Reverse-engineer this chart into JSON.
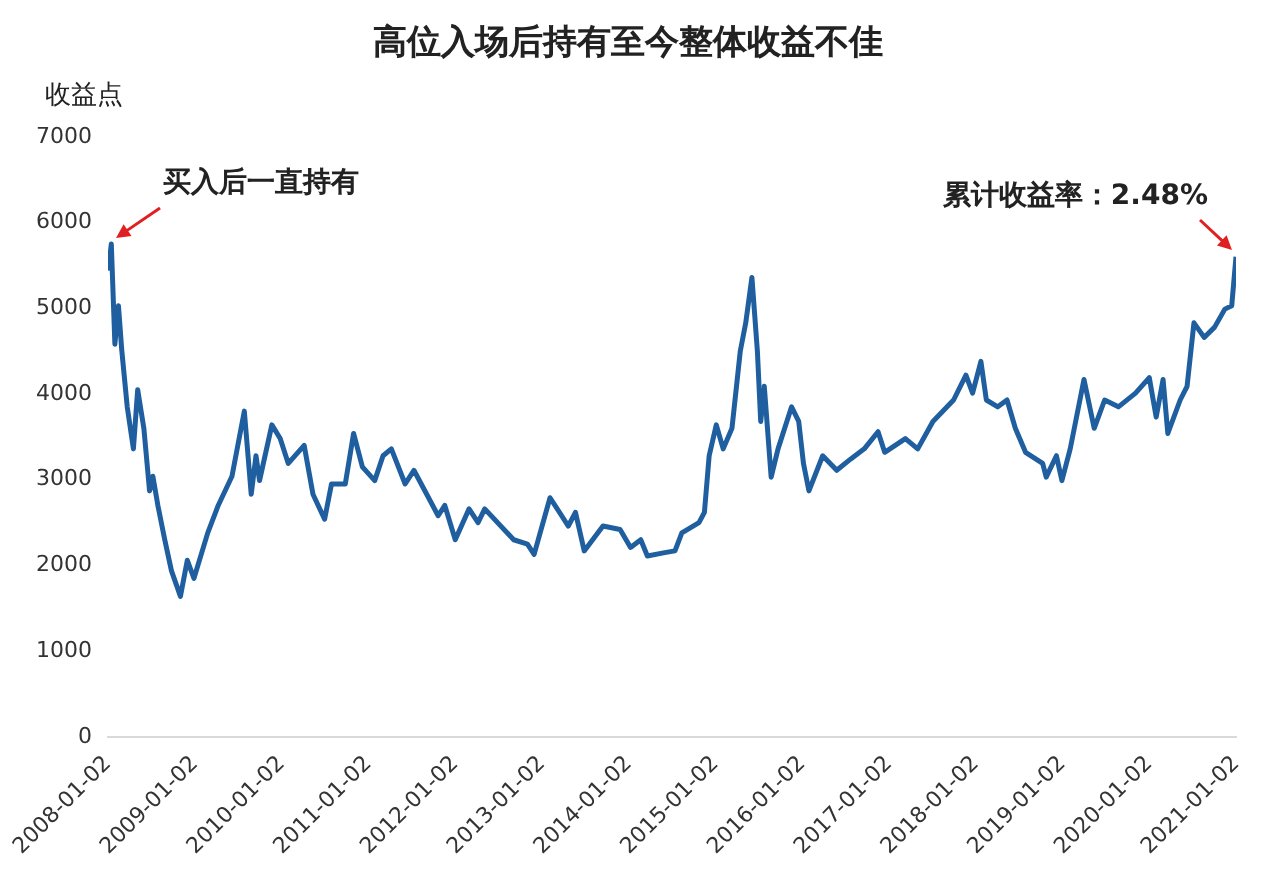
{
  "chart_data": {
    "type": "line",
    "title": "高位入场后持有至今整体收益不佳",
    "ylabel": "收益点",
    "x": [
      "2008-01-03",
      "2008-01-16",
      "2008-01-31",
      "2008-02-15",
      "2008-02-29",
      "2008-03-23",
      "2008-04-18",
      "2008-05-06",
      "2008-06-01",
      "2008-06-25",
      "2008-07-09",
      "2008-07-30",
      "2008-08-28",
      "2008-09-25",
      "2008-11-02",
      "2008-12-01",
      "2008-12-29",
      "2009-02-25",
      "2009-04-10",
      "2009-06-07",
      "2009-07-29",
      "2009-08-27",
      "2009-09-16",
      "2009-10-01",
      "2009-11-22",
      "2009-12-27",
      "2010-01-30",
      "2010-04-07",
      "2010-05-14",
      "2010-07-02",
      "2010-07-31",
      "2010-09-27",
      "2010-11-01",
      "2010-12-08",
      "2011-01-29",
      "2011-03-05",
      "2011-04-09",
      "2011-06-06",
      "2011-07-13",
      "2011-10-23",
      "2011-11-20",
      "2012-01-03",
      "2012-03-01",
      "2012-04-08",
      "2012-05-06",
      "2012-09-05",
      "2012-11-02",
      "2012-11-30",
      "2013-02-05",
      "2013-03-26",
      "2013-04-23",
      "2013-05-23",
      "2013-06-29",
      "2013-09-16",
      "2013-11-27",
      "2014-01-10",
      "2014-02-22",
      "2014-03-22",
      "2014-06-03",
      "2014-07-16",
      "2014-08-14",
      "2014-10-25",
      "2014-11-17",
      "2014-12-07",
      "2015-01-06",
      "2015-02-04",
      "2015-03-13",
      "2015-04-17",
      "2015-05-10",
      "2015-06-05",
      "2015-06-28",
      "2015-07-12",
      "2015-07-27",
      "2015-08-25",
      "2015-09-23",
      "2015-10-30",
      "2015-11-19",
      "2015-12-19",
      "2016-01-08",
      "2016-01-31",
      "2016-03-29",
      "2016-05-27",
      "2016-07-24",
      "2016-09-20",
      "2016-11-17",
      "2016-12-15",
      "2017-03-12",
      "2017-05-03",
      "2017-07-06",
      "2017-10-01",
      "2017-11-22",
      "2017-12-20",
      "2018-01-24",
      "2018-02-16",
      "2018-04-05",
      "2018-05-14",
      "2018-06-18",
      "2018-07-31",
      "2018-10-11",
      "2018-10-26",
      "2018-12-08",
      "2018-12-31",
      "2019-02-04",
      "2019-04-03",
      "2019-05-16",
      "2019-06-29",
      "2019-08-26",
      "2019-11-06",
      "2020-01-03",
      "2020-02-01",
      "2020-03-01",
      "2020-03-21",
      "2020-05-12",
      "2020-06-10",
      "2020-07-09",
      "2020-08-21",
      "2020-10-04",
      "2020-11-16",
      "2020-12-15",
      "2021-01-02"
    ],
    "series": [
      {
        "color": "#1f5fa0",
        "values": [
          5440,
          5750,
          4580,
          5030,
          4510,
          3850,
          3360,
          4050,
          3600,
          2870,
          3040,
          2700,
          2300,
          1940,
          1640,
          2060,
          1850,
          2380,
          2700,
          3040,
          3800,
          2830,
          3280,
          2990,
          3640,
          3480,
          3190,
          3400,
          2830,
          2540,
          2950,
          2950,
          3540,
          3150,
          2990,
          3280,
          3360,
          2950,
          3110,
          2580,
          2700,
          2300,
          2660,
          2500,
          2660,
          2300,
          2250,
          2130,
          2790,
          2580,
          2460,
          2620,
          2170,
          2460,
          2420,
          2210,
          2300,
          2110,
          2150,
          2170,
          2380,
          2500,
          2620,
          3280,
          3640,
          3360,
          3600,
          4500,
          4830,
          5360,
          4500,
          3680,
          4090,
          3030,
          3360,
          3680,
          3850,
          3680,
          3190,
          2870,
          3280,
          3110,
          3240,
          3360,
          3560,
          3320,
          3480,
          3360,
          3680,
          3930,
          4220,
          4010,
          4380,
          3930,
          3850,
          3930,
          3600,
          3320,
          3190,
          3030,
          3280,
          2990,
          3360,
          4170,
          3600,
          3930,
          3850,
          4010,
          4190,
          3730,
          4170,
          3540,
          3930,
          4090,
          4830,
          4660,
          4780,
          4990,
          5030,
          5600
        ]
      }
    ],
    "xlim": [
      "2008-01-02",
      "2021-01-02"
    ],
    "xticks": [
      "2008-01-02",
      "2009-01-02",
      "2010-01-02",
      "2011-01-02",
      "2012-01-02",
      "2013-01-02",
      "2014-01-02",
      "2015-01-02",
      "2016-01-02",
      "2017-01-02",
      "2018-01-02",
      "2019-01-02",
      "2020-01-02",
      "2021-01-02"
    ],
    "ylim": [
      0,
      7000
    ],
    "yticks": [
      0,
      1000,
      2000,
      3000,
      4000,
      5000,
      6000,
      7000
    ],
    "grid": false,
    "legend": false,
    "marker": "none",
    "line_style": "solid",
    "annotations": [
      {
        "text": "买入后一直持有",
        "x": "2008-01-16",
        "y": 5750
      },
      {
        "text": "累计收益率：2.48%",
        "x": "2021-01-02",
        "y": 5600
      }
    ]
  }
}
